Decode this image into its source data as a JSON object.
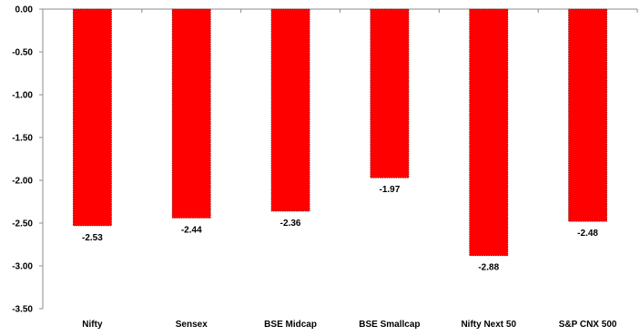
{
  "colors": {
    "bar_fill": "#ff0000",
    "bar_outline": "#8b0000",
    "axis": "#8c8c8c",
    "text": "#000000"
  },
  "chart_data": {
    "type": "bar",
    "categories": [
      "Nifty",
      "Sensex",
      "BSE Midcap",
      "BSE Smallcap",
      "Nifty Next 50",
      "S&P CNX 500"
    ],
    "values": [
      -2.53,
      -2.44,
      -2.36,
      -1.97,
      -2.88,
      -2.48
    ],
    "value_labels": [
      "-2.53",
      "-2.44",
      "-2.36",
      "-1.97",
      "-2.88",
      "-2.48"
    ],
    "ylim": [
      -3.5,
      0
    ],
    "yticks": [
      0,
      -0.5,
      -1,
      -1.5,
      -2,
      -2.5,
      -3,
      -3.5
    ],
    "ytick_labels": [
      "0.00",
      "-0.50",
      "-1.00",
      "-1.50",
      "-2.00",
      "-2.50",
      "-3.00",
      "-3.50"
    ],
    "grid": false,
    "legend": "none",
    "title": "",
    "xlabel": "",
    "ylabel": ""
  }
}
